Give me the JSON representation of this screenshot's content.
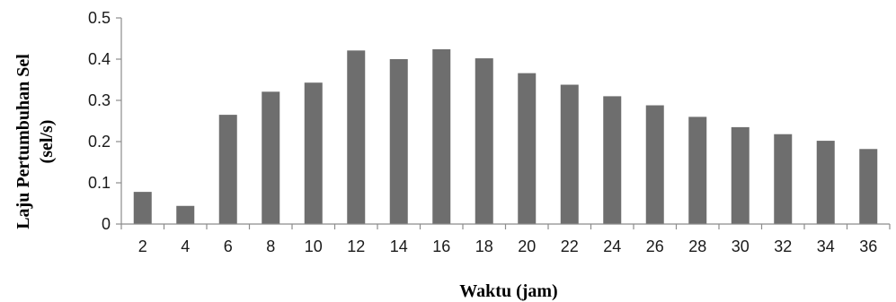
{
  "chart_data": {
    "type": "bar",
    "categories": [
      "2",
      "4",
      "6",
      "8",
      "10",
      "12",
      "14",
      "16",
      "18",
      "20",
      "22",
      "24",
      "26",
      "28",
      "30",
      "32",
      "34",
      "36"
    ],
    "values": [
      0.078,
      0.044,
      0.265,
      0.321,
      0.343,
      0.421,
      0.4,
      0.424,
      0.402,
      0.366,
      0.338,
      0.31,
      0.288,
      0.26,
      0.235,
      0.218,
      0.202,
      0.182
    ],
    "yticks": [
      "0",
      "0.1",
      "0.2",
      "0.3",
      "0.4",
      "0.5"
    ],
    "ylim": [
      0,
      0.5
    ],
    "xlabel": "Waktu (jam)",
    "ylabel_line1": "Laju Pertumbuhan Sel",
    "ylabel_line2": "(sel/s)",
    "title": "",
    "grid": false,
    "legend": "none",
    "colors": {
      "bar": "#6e6e6e",
      "axis": "#8c8c8c"
    }
  }
}
